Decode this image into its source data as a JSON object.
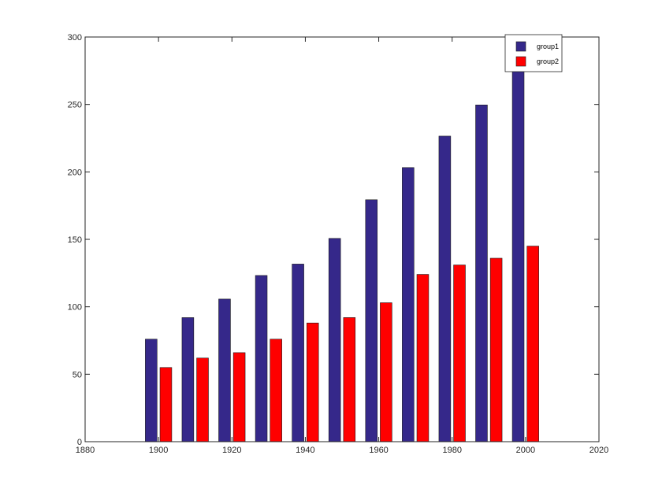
{
  "chart_data": {
    "type": "bar",
    "categories": [
      1900,
      1910,
      1920,
      1930,
      1940,
      1950,
      1960,
      1970,
      1980,
      1990,
      2000
    ],
    "series": [
      {
        "name": "group1",
        "color": "#35288A",
        "values": [
          75.995,
          91.972,
          105.711,
          123.203,
          131.669,
          150.697,
          179.323,
          203.212,
          226.505,
          249.633,
          281.422
        ]
      },
      {
        "name": "group2",
        "color": "#FF0000",
        "values": [
          55,
          62,
          66,
          76,
          88,
          92,
          103,
          124,
          131,
          136,
          145
        ]
      }
    ],
    "xlim": [
      1880,
      2020
    ],
    "ylim": [
      0,
      300
    ],
    "xticks": [
      1880,
      1900,
      1920,
      1940,
      1960,
      1980,
      2000,
      2020
    ],
    "yticks": [
      0,
      50,
      100,
      150,
      200,
      250,
      300
    ],
    "title": "",
    "xlabel": "",
    "ylabel": "",
    "legend": {
      "placement": "top-right",
      "entries": [
        "group1",
        "group2"
      ]
    },
    "grid": false
  }
}
